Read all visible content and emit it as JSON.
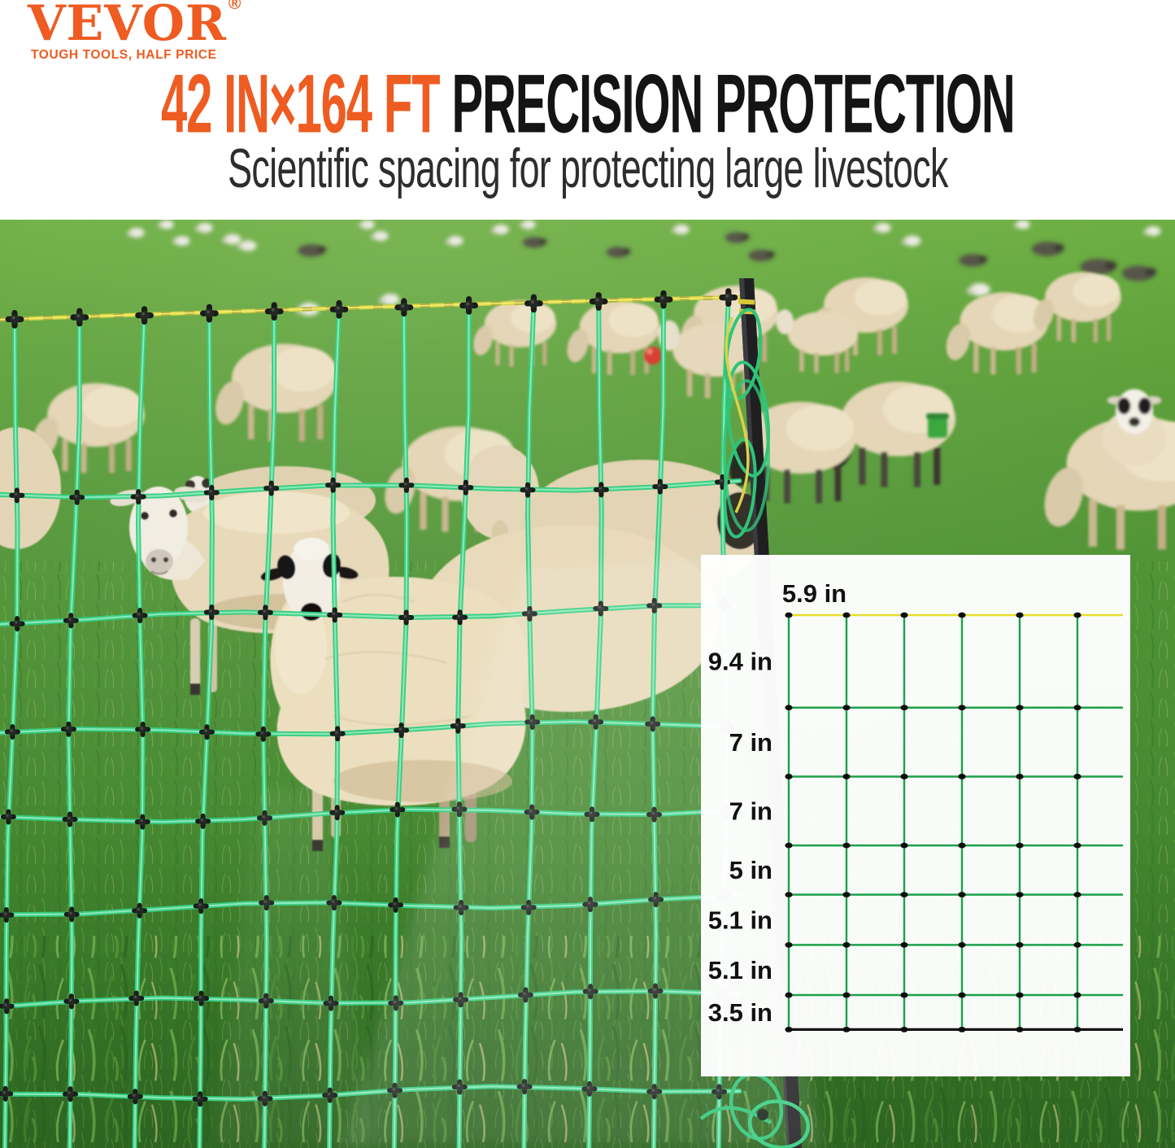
{
  "brand": {
    "name": "VEVOR",
    "registered_mark": "®",
    "tagline": "TOUGH TOOLS, HALF PRICE",
    "color": "#ee5c22"
  },
  "headline": {
    "highlight": "42 IN×164 FT",
    "rest": "PRECISION PROTECTION",
    "highlight_color": "#ee5c22",
    "rest_color": "#141414"
  },
  "subheadline": {
    "text": "Scientific spacing for protecting large livestock"
  },
  "diagram": {
    "column_spacing_label": "5.9 in",
    "column_spacing_inches": 5.9,
    "columns": 6,
    "rows": [
      {
        "label": "9.4 in",
        "inches": 9.4
      },
      {
        "label": "7 in",
        "inches": 7
      },
      {
        "label": "7 in",
        "inches": 7
      },
      {
        "label": "5 in",
        "inches": 5
      },
      {
        "label": "5.1 in",
        "inches": 5.1
      },
      {
        "label": "5.1 in",
        "inches": 5.1
      },
      {
        "label": "3.5 in",
        "inches": 3.5
      }
    ],
    "colors": {
      "top_wire": "#e7df2d",
      "strand": "#1da04a",
      "ground_line": "#131313",
      "dot": "#0d0d0d",
      "label": "#111111",
      "panel_bg": "#ffffff"
    }
  }
}
